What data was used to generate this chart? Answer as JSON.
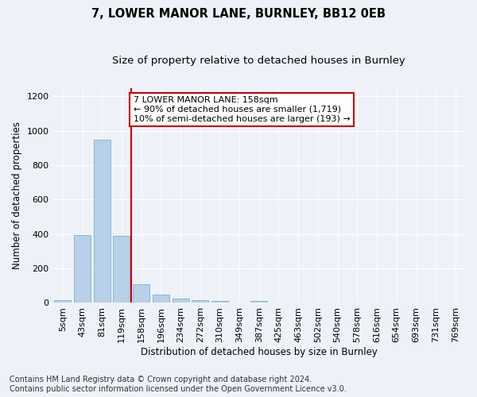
{
  "title": "7, LOWER MANOR LANE, BURNLEY, BB12 0EB",
  "subtitle": "Size of property relative to detached houses in Burnley",
  "xlabel": "Distribution of detached houses by size in Burnley",
  "ylabel": "Number of detached properties",
  "categories": [
    "5sqm",
    "43sqm",
    "81sqm",
    "119sqm",
    "158sqm",
    "196sqm",
    "234sqm",
    "272sqm",
    "310sqm",
    "349sqm",
    "387sqm",
    "425sqm",
    "463sqm",
    "502sqm",
    "540sqm",
    "578sqm",
    "616sqm",
    "654sqm",
    "693sqm",
    "731sqm",
    "769sqm"
  ],
  "values": [
    15,
    395,
    950,
    390,
    110,
    50,
    25,
    15,
    10,
    0,
    10,
    0,
    0,
    0,
    0,
    0,
    0,
    0,
    0,
    0,
    0
  ],
  "bar_color": "#b8d0e8",
  "bar_edge_color": "#7aafd4",
  "vline_x_index": 4,
  "vline_color": "#cc0000",
  "annotation_line1": "7 LOWER MANOR LANE: 158sqm",
  "annotation_line2": "← 90% of detached houses are smaller (1,719)",
  "annotation_line3": "10% of semi-detached houses are larger (193) →",
  "annotation_box_color": "#ffffff",
  "annotation_box_edge_color": "#cc0000",
  "ylim": [
    0,
    1250
  ],
  "yticks": [
    0,
    200,
    400,
    600,
    800,
    1000,
    1200
  ],
  "footer": "Contains HM Land Registry data © Crown copyright and database right 2024.\nContains public sector information licensed under the Open Government Licence v3.0.",
  "title_fontsize": 10.5,
  "subtitle_fontsize": 9.5,
  "axis_label_fontsize": 8.5,
  "tick_fontsize": 8,
  "annotation_fontsize": 8,
  "footer_fontsize": 7,
  "background_color": "#eef2f8",
  "plot_background_color": "#eef2f8"
}
